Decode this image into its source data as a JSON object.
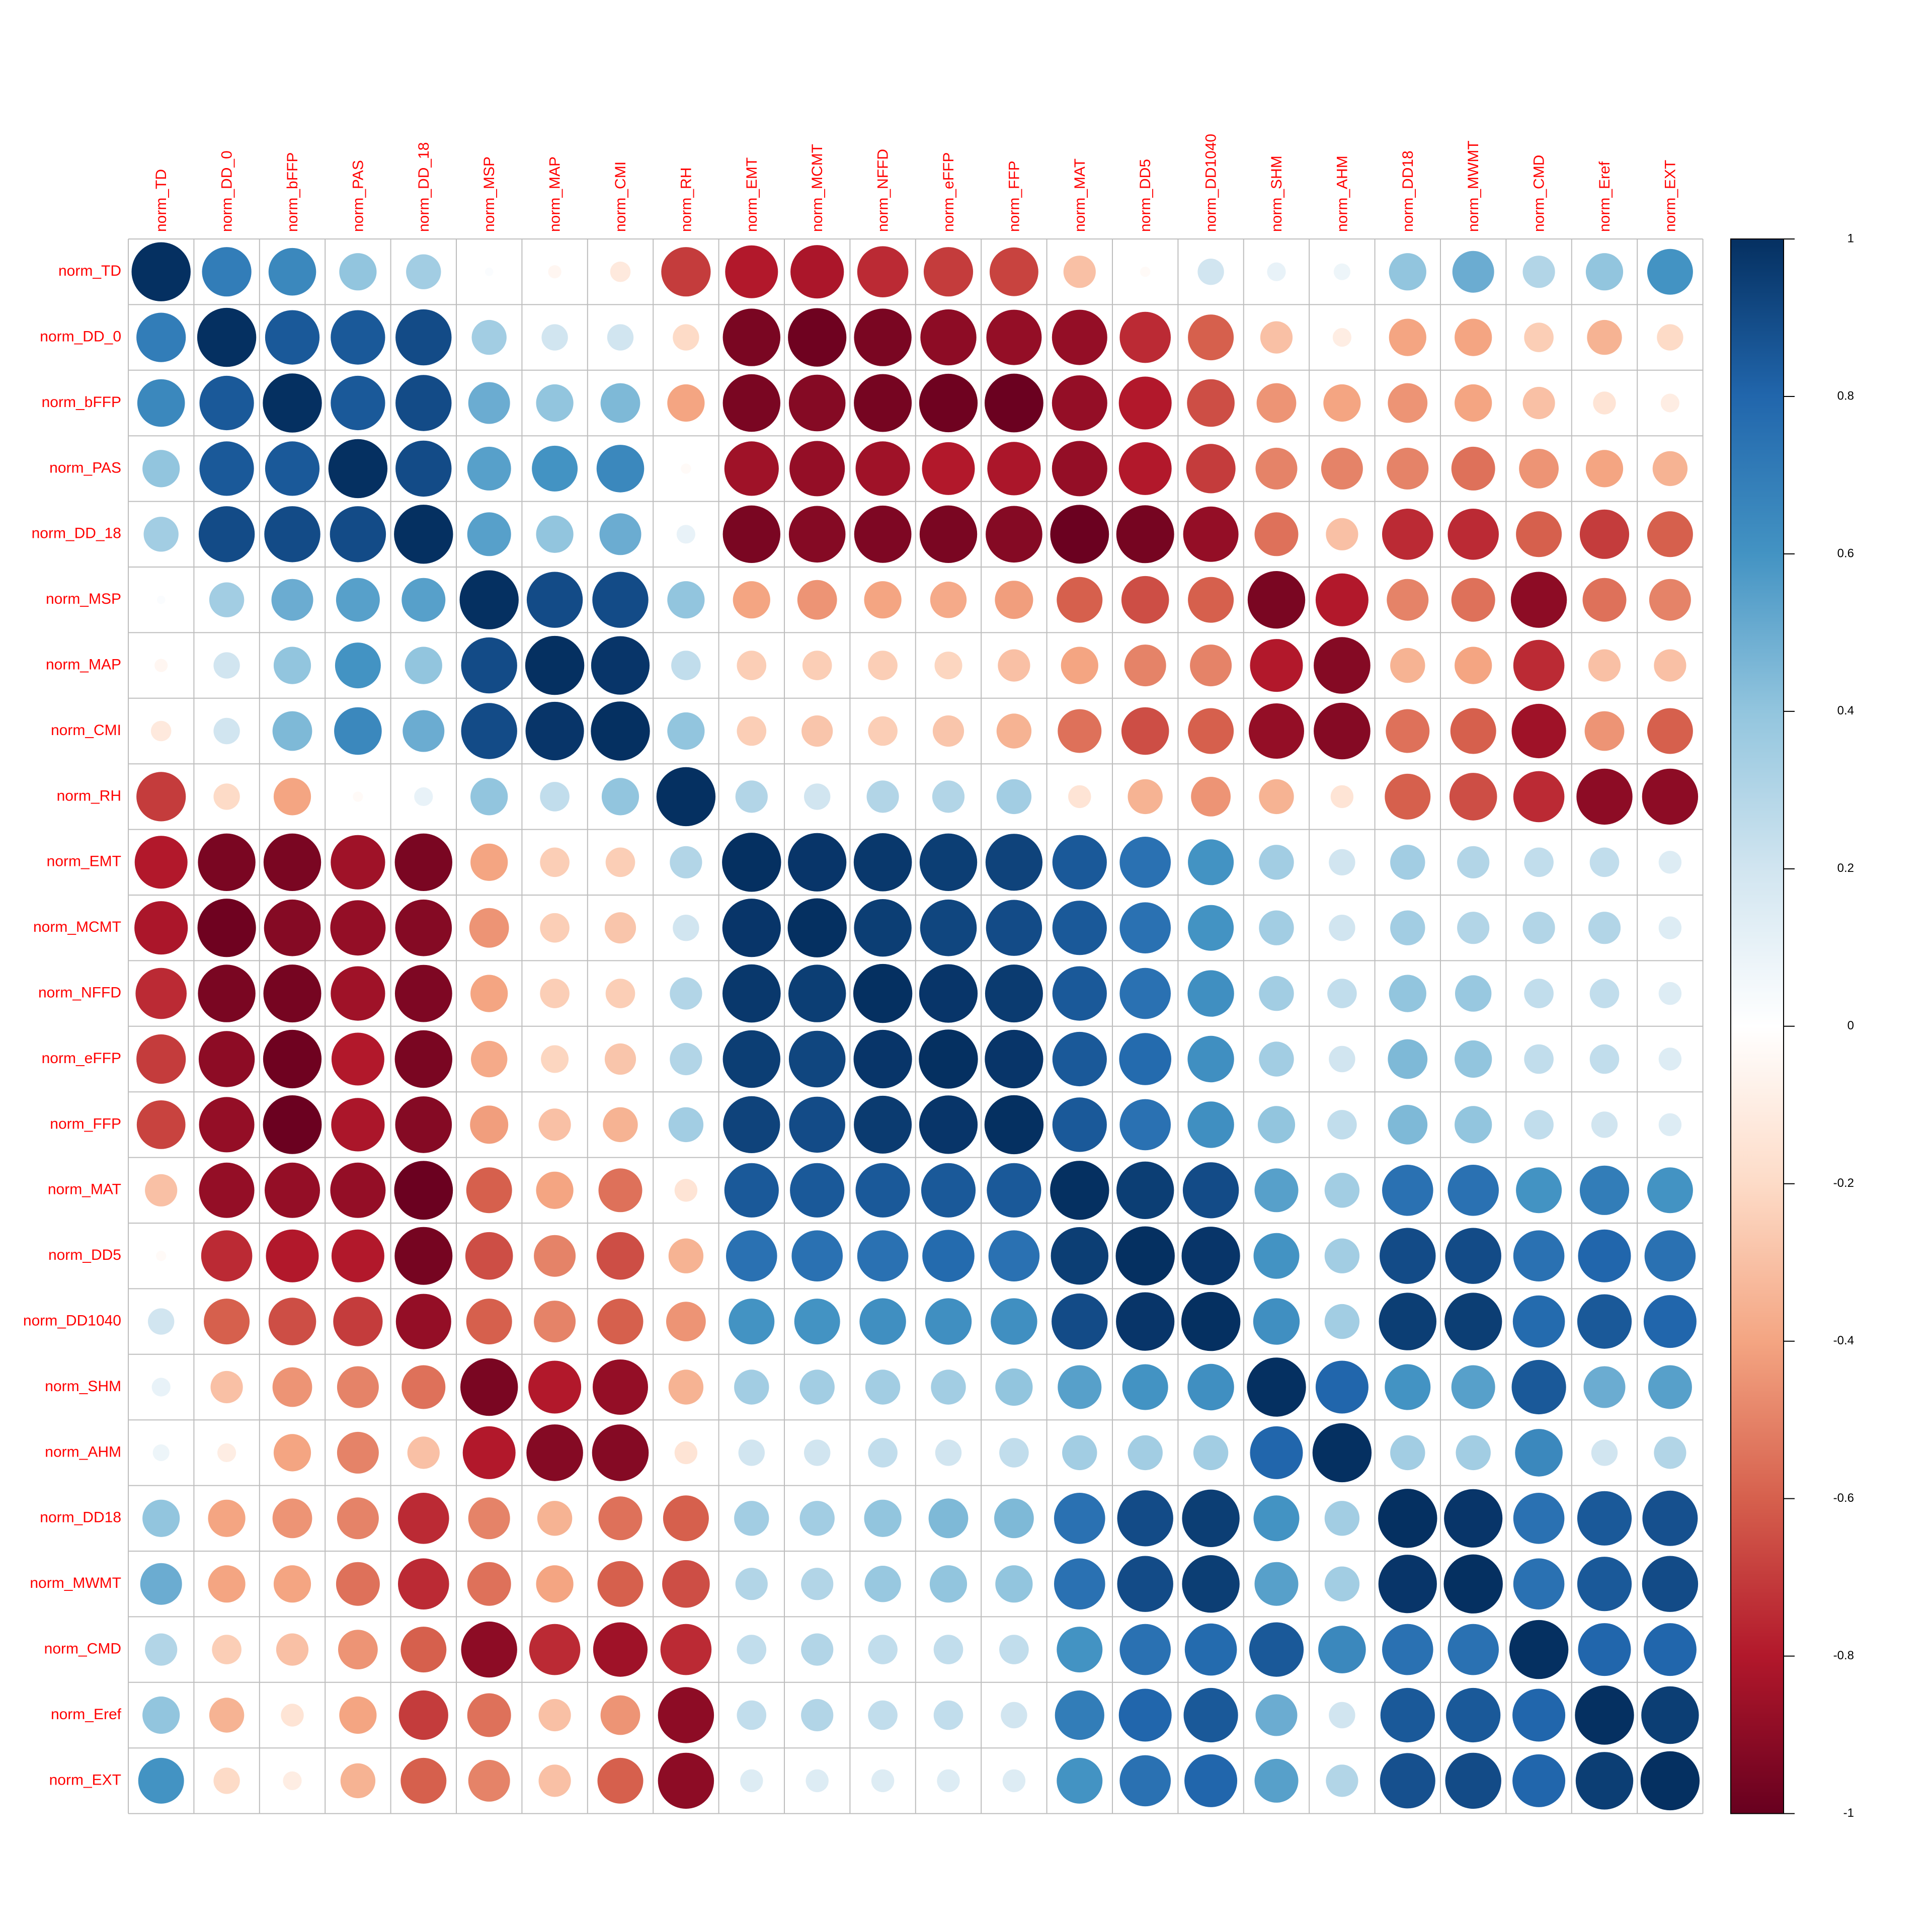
{
  "chart_data": {
    "type": "heatmap",
    "title": "",
    "variables": [
      "norm_TD",
      "norm_DD_0",
      "norm_bFFP",
      "norm_PAS",
      "norm_DD_18",
      "norm_MSP",
      "norm_MAP",
      "norm_CMI",
      "norm_RH",
      "norm_EMT",
      "norm_MCMT",
      "norm_NFFD",
      "norm_eFFP",
      "norm_FFP",
      "norm_MAT",
      "norm_DD5",
      "norm_DD1040",
      "norm_SHM",
      "norm_AHM",
      "norm_DD18",
      "norm_MWMT",
      "norm_CMD",
      "norm_Eref",
      "norm_EXT"
    ],
    "matrix": [
      [
        1.0,
        0.7,
        0.65,
        0.4,
        0.35,
        0.02,
        -0.05,
        -0.12,
        -0.7,
        -0.8,
        -0.82,
        -0.75,
        -0.7,
        -0.68,
        -0.3,
        -0.03,
        0.2,
        0.1,
        0.08,
        0.4,
        0.5,
        0.3,
        0.4,
        0.6
      ],
      [
        0.7,
        1.0,
        0.85,
        0.85,
        0.9,
        0.35,
        0.2,
        0.2,
        -0.2,
        -0.95,
        -0.98,
        -0.95,
        -0.9,
        -0.88,
        -0.88,
        -0.75,
        -0.6,
        -0.3,
        -0.1,
        -0.4,
        -0.4,
        -0.25,
        -0.35,
        -0.2
      ],
      [
        0.65,
        0.85,
        1.0,
        0.85,
        0.9,
        0.5,
        0.4,
        0.45,
        -0.4,
        -0.95,
        -0.92,
        -0.96,
        -0.98,
        -0.99,
        -0.88,
        -0.8,
        -0.65,
        -0.45,
        -0.4,
        -0.45,
        -0.4,
        -0.3,
        -0.15,
        -0.1
      ],
      [
        0.4,
        0.85,
        0.85,
        1.0,
        0.9,
        0.55,
        0.6,
        0.65,
        -0.03,
        -0.85,
        -0.88,
        -0.85,
        -0.8,
        -0.82,
        -0.88,
        -0.8,
        -0.7,
        -0.5,
        -0.5,
        -0.5,
        -0.55,
        -0.45,
        -0.4,
        -0.35
      ],
      [
        0.35,
        0.9,
        0.9,
        0.9,
        1.0,
        0.55,
        0.4,
        0.5,
        0.1,
        -0.95,
        -0.92,
        -0.94,
        -0.95,
        -0.92,
        -0.99,
        -0.96,
        -0.88,
        -0.55,
        -0.3,
        -0.75,
        -0.75,
        -0.6,
        -0.7,
        -0.6
      ],
      [
        0.02,
        0.35,
        0.5,
        0.55,
        0.55,
        1.0,
        0.9,
        0.9,
        0.4,
        -0.4,
        -0.45,
        -0.4,
        -0.38,
        -0.42,
        -0.6,
        -0.65,
        -0.6,
        -0.95,
        -0.8,
        -0.5,
        -0.55,
        -0.9,
        -0.55,
        -0.5
      ],
      [
        -0.05,
        0.2,
        0.4,
        0.6,
        0.4,
        0.9,
        1.0,
        0.98,
        0.25,
        -0.25,
        -0.25,
        -0.25,
        -0.22,
        -0.3,
        -0.4,
        -0.5,
        -0.5,
        -0.8,
        -0.92,
        -0.35,
        -0.4,
        -0.75,
        -0.3,
        -0.3
      ],
      [
        -0.12,
        0.2,
        0.45,
        0.65,
        0.5,
        0.9,
        0.98,
        1.0,
        0.4,
        -0.25,
        -0.28,
        -0.25,
        -0.28,
        -0.35,
        -0.55,
        -0.65,
        -0.6,
        -0.88,
        -0.92,
        -0.55,
        -0.6,
        -0.85,
        -0.45,
        -0.6
      ],
      [
        -0.7,
        -0.2,
        -0.4,
        -0.03,
        0.1,
        0.4,
        0.25,
        0.4,
        1.0,
        0.3,
        0.2,
        0.3,
        0.3,
        0.35,
        -0.15,
        -0.35,
        -0.45,
        -0.35,
        -0.15,
        -0.6,
        -0.65,
        -0.75,
        -0.9,
        -0.9
      ],
      [
        -0.8,
        -0.95,
        -0.95,
        -0.85,
        -0.95,
        -0.4,
        -0.25,
        -0.25,
        0.3,
        1.0,
        0.98,
        0.97,
        0.95,
        0.93,
        0.85,
        0.75,
        0.6,
        0.35,
        0.2,
        0.35,
        0.3,
        0.25,
        0.25,
        0.15
      ],
      [
        -0.82,
        -0.98,
        -0.92,
        -0.88,
        -0.92,
        -0.45,
        -0.25,
        -0.28,
        0.2,
        0.98,
        1.0,
        0.95,
        0.92,
        0.9,
        0.85,
        0.75,
        0.6,
        0.35,
        0.2,
        0.35,
        0.3,
        0.3,
        0.3,
        0.15
      ],
      [
        -0.75,
        -0.95,
        -0.96,
        -0.85,
        -0.94,
        -0.4,
        -0.25,
        -0.25,
        0.3,
        0.97,
        0.95,
        1.0,
        0.98,
        0.96,
        0.85,
        0.75,
        0.62,
        0.35,
        0.25,
        0.4,
        0.38,
        0.25,
        0.25,
        0.15
      ],
      [
        -0.7,
        -0.9,
        -0.98,
        -0.8,
        -0.95,
        -0.38,
        -0.22,
        -0.28,
        0.3,
        0.95,
        0.92,
        0.98,
        1.0,
        0.98,
        0.85,
        0.78,
        0.62,
        0.35,
        0.2,
        0.45,
        0.4,
        0.25,
        0.25,
        0.15
      ],
      [
        -0.68,
        -0.88,
        -0.99,
        -0.82,
        -0.92,
        -0.42,
        -0.3,
        -0.35,
        0.35,
        0.93,
        0.9,
        0.96,
        0.98,
        1.0,
        0.85,
        0.75,
        0.62,
        0.4,
        0.25,
        0.45,
        0.4,
        0.25,
        0.2,
        0.15
      ],
      [
        -0.3,
        -0.88,
        -0.88,
        -0.88,
        -0.99,
        -0.6,
        -0.4,
        -0.55,
        -0.15,
        0.85,
        0.85,
        0.85,
        0.85,
        0.85,
        1.0,
        0.95,
        0.9,
        0.55,
        0.35,
        0.75,
        0.75,
        0.6,
        0.7,
        0.6
      ],
      [
        -0.03,
        -0.75,
        -0.8,
        -0.8,
        -0.96,
        -0.65,
        -0.5,
        -0.65,
        -0.35,
        0.75,
        0.75,
        0.75,
        0.78,
        0.75,
        0.95,
        1.0,
        0.98,
        0.6,
        0.35,
        0.9,
        0.9,
        0.75,
        0.8,
        0.75
      ],
      [
        0.2,
        -0.6,
        -0.65,
        -0.7,
        -0.88,
        -0.6,
        -0.5,
        -0.6,
        -0.45,
        0.6,
        0.6,
        0.62,
        0.62,
        0.62,
        0.9,
        0.98,
        1.0,
        0.62,
        0.35,
        0.95,
        0.95,
        0.78,
        0.85,
        0.8
      ],
      [
        0.1,
        -0.3,
        -0.45,
        -0.5,
        -0.55,
        -0.95,
        -0.8,
        -0.88,
        -0.35,
        0.35,
        0.35,
        0.35,
        0.35,
        0.4,
        0.55,
        0.6,
        0.62,
        1.0,
        0.8,
        0.6,
        0.55,
        0.85,
        0.5,
        0.55
      ],
      [
        0.08,
        -0.1,
        -0.4,
        -0.5,
        -0.3,
        -0.8,
        -0.92,
        -0.92,
        -0.15,
        0.2,
        0.2,
        0.25,
        0.2,
        0.25,
        0.35,
        0.35,
        0.35,
        0.8,
        1.0,
        0.35,
        0.35,
        0.65,
        0.2,
        0.3
      ],
      [
        0.4,
        -0.4,
        -0.45,
        -0.5,
        -0.75,
        -0.5,
        -0.35,
        -0.55,
        -0.6,
        0.35,
        0.35,
        0.4,
        0.45,
        0.45,
        0.75,
        0.9,
        0.95,
        0.6,
        0.35,
        1.0,
        0.98,
        0.75,
        0.85,
        0.88
      ],
      [
        0.5,
        -0.4,
        -0.4,
        -0.55,
        -0.75,
        -0.55,
        -0.4,
        -0.6,
        -0.65,
        0.3,
        0.3,
        0.38,
        0.4,
        0.4,
        0.75,
        0.9,
        0.95,
        0.55,
        0.35,
        0.98,
        1.0,
        0.75,
        0.85,
        0.9
      ],
      [
        0.3,
        -0.25,
        -0.3,
        -0.45,
        -0.6,
        -0.9,
        -0.75,
        -0.85,
        -0.75,
        0.25,
        0.3,
        0.25,
        0.25,
        0.25,
        0.6,
        0.75,
        0.78,
        0.85,
        0.65,
        0.75,
        0.75,
        1.0,
        0.8,
        0.8
      ],
      [
        0.4,
        -0.35,
        -0.15,
        -0.4,
        -0.7,
        -0.55,
        -0.3,
        -0.45,
        -0.9,
        0.25,
        0.3,
        0.25,
        0.25,
        0.2,
        0.7,
        0.8,
        0.85,
        0.5,
        0.2,
        0.85,
        0.85,
        0.8,
        1.0,
        0.95
      ],
      [
        0.6,
        -0.2,
        -0.1,
        -0.35,
        -0.6,
        -0.5,
        -0.3,
        -0.6,
        -0.9,
        0.15,
        0.15,
        0.15,
        0.15,
        0.15,
        0.6,
        0.75,
        0.8,
        0.55,
        0.3,
        0.88,
        0.9,
        0.8,
        0.95,
        1.0
      ]
    ],
    "color_scale": {
      "range": [
        -1,
        1
      ],
      "stops": [
        {
          "value": -1.0,
          "color": "#67001f"
        },
        {
          "value": -0.8,
          "color": "#b2182b"
        },
        {
          "value": -0.6,
          "color": "#d6604d"
        },
        {
          "value": -0.4,
          "color": "#f4a582"
        },
        {
          "value": -0.2,
          "color": "#fddbc7"
        },
        {
          "value": 0.0,
          "color": "#ffffff"
        },
        {
          "value": 0.2,
          "color": "#d1e5f0"
        },
        {
          "value": 0.4,
          "color": "#92c5de"
        },
        {
          "value": 0.6,
          "color": "#4393c3"
        },
        {
          "value": 0.8,
          "color": "#2166ac"
        },
        {
          "value": 1.0,
          "color": "#053061"
        }
      ],
      "tick_labels": [
        "1",
        "0.8",
        "0.6",
        "0.4",
        "0.2",
        "0",
        "-0.2",
        "-0.4",
        "-0.6",
        "-0.8",
        "-1"
      ]
    },
    "label_color": "#ff0000",
    "grid_color": "#bdbdbd",
    "legend_placement": "right"
  }
}
